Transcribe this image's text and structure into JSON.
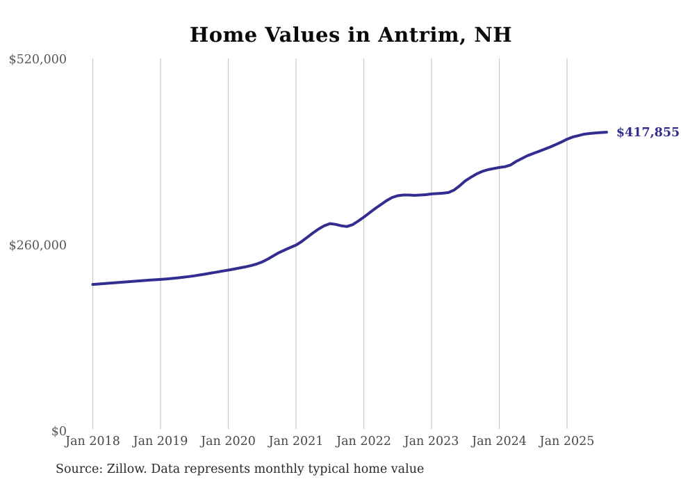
{
  "chart": {
    "title": "Home Values in Antrim, NH",
    "source_note": "Source: Zillow. Data represents monthly typical home value",
    "end_label": "$417,855",
    "colors": {
      "line": "#322d8e",
      "grid": "#c9c9c9",
      "y_tick_label": "#575757",
      "x_tick_label": "#474747",
      "title": "#0b0b0b",
      "source": "#2a2a2a",
      "background": "#ffffff"
    }
  },
  "chart_data": {
    "type": "line",
    "title": "Home Values in Antrim, NH",
    "xlabel": "",
    "ylabel": "",
    "ylim": [
      0,
      520000
    ],
    "grid": "vertical-only",
    "legend": "none",
    "end_annotation": "$417,855",
    "y_ticks": [
      {
        "label": "$0",
        "value": 0
      },
      {
        "label": "$260,000",
        "value": 260000
      },
      {
        "label": "$520,000",
        "value": 520000
      }
    ],
    "x_ticks": [
      {
        "label": "Jan 2018",
        "month_index": 0
      },
      {
        "label": "Jan 2019",
        "month_index": 12
      },
      {
        "label": "Jan 2020",
        "month_index": 24
      },
      {
        "label": "Jan 2021",
        "month_index": 36
      },
      {
        "label": "Jan 2022",
        "month_index": 48
      },
      {
        "label": "Jan 2023",
        "month_index": 60
      },
      {
        "label": "Jan 2024",
        "month_index": 72
      },
      {
        "label": "Jan 2025",
        "month_index": 84
      }
    ],
    "series": [
      {
        "name": "Monthly typical home value",
        "x": [
          "2018-01",
          "2018-02",
          "2018-03",
          "2018-04",
          "2018-05",
          "2018-06",
          "2018-07",
          "2018-08",
          "2018-09",
          "2018-10",
          "2018-11",
          "2018-12",
          "2019-01",
          "2019-02",
          "2019-03",
          "2019-04",
          "2019-05",
          "2019-06",
          "2019-07",
          "2019-08",
          "2019-09",
          "2019-10",
          "2019-11",
          "2019-12",
          "2020-01",
          "2020-02",
          "2020-03",
          "2020-04",
          "2020-05",
          "2020-06",
          "2020-07",
          "2020-08",
          "2020-09",
          "2020-10",
          "2020-11",
          "2020-12",
          "2021-01",
          "2021-02",
          "2021-03",
          "2021-04",
          "2021-05",
          "2021-06",
          "2021-07",
          "2021-08",
          "2021-09",
          "2021-10",
          "2021-11",
          "2021-12",
          "2022-01",
          "2022-02",
          "2022-03",
          "2022-04",
          "2022-05",
          "2022-06",
          "2022-07",
          "2022-08",
          "2022-09",
          "2022-10",
          "2022-11",
          "2022-12",
          "2023-01",
          "2023-02",
          "2023-03",
          "2023-04",
          "2023-05",
          "2023-06",
          "2023-07",
          "2023-08",
          "2023-09",
          "2023-10",
          "2023-11",
          "2023-12",
          "2024-01",
          "2024-02",
          "2024-03",
          "2024-04",
          "2024-05",
          "2024-06",
          "2024-07",
          "2024-08",
          "2024-09",
          "2024-10",
          "2024-11",
          "2024-12",
          "2025-01",
          "2025-02",
          "2025-03",
          "2025-04",
          "2025-05",
          "2025-06",
          "2025-07",
          "2025-08"
        ],
        "values": [
          205000,
          205600,
          206200,
          206800,
          207400,
          208000,
          208600,
          209200,
          209800,
          210400,
          211000,
          211500,
          212000,
          212600,
          213300,
          214100,
          215000,
          216000,
          217000,
          218300,
          219600,
          221000,
          222300,
          223700,
          225000,
          226500,
          228000,
          229500,
          231200,
          233500,
          236500,
          240500,
          245000,
          249500,
          253200,
          256700,
          260000,
          265000,
          271000,
          277000,
          282500,
          287000,
          290000,
          289000,
          287000,
          286000,
          288500,
          293500,
          299000,
          305000,
          311000,
          316500,
          322000,
          326500,
          329000,
          330000,
          330000,
          329500,
          330000,
          330500,
          331500,
          332000,
          332500,
          333500,
          337000,
          343000,
          350000,
          355000,
          359500,
          363000,
          365500,
          367000,
          368500,
          369500,
          372000,
          377000,
          381000,
          385000,
          388000,
          391000,
          394000,
          397000,
          400500,
          404000,
          408000,
          411000,
          413000,
          415000,
          416000,
          416800,
          417400,
          417855
        ]
      }
    ]
  }
}
